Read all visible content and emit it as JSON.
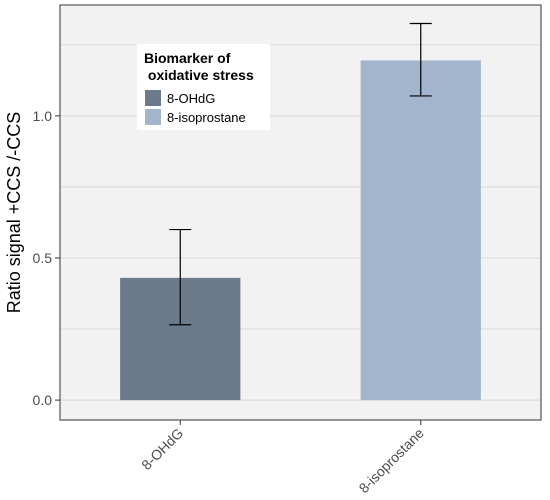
{
  "chart_data": {
    "type": "bar",
    "categories": [
      "8-OHdG",
      "8-isoprostane"
    ],
    "values": [
      0.43,
      1.195
    ],
    "error_low": [
      0.265,
      1.07
    ],
    "error_high": [
      0.6,
      1.325
    ],
    "colors": [
      "#6c7b8b",
      "#a2b5cd"
    ],
    "title": "",
    "xlabel": "",
    "ylabel": "Ratio signal +CCS /-CCS",
    "ylim": [
      -0.07,
      1.39
    ],
    "yticks": [
      0.0,
      0.5,
      1.0
    ],
    "ytick_labels": [
      "0.0",
      "0.5",
      "1.0"
    ],
    "grid": true,
    "legend": {
      "title_lines": [
        "Biomarker of",
        " oxidative stress"
      ],
      "placement": "top-left-inside",
      "entries": [
        "8-OHdG",
        "8-isoprostane"
      ]
    }
  },
  "colors": {
    "panel_background": "#f2f2f2",
    "grid_line": "#d9d9d9",
    "axis_border": "#333333",
    "error_bar": "#000000"
  }
}
